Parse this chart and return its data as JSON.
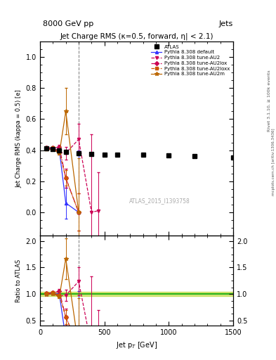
{
  "title": "Jet Charge RMS (κ=0.5, forward, η| < 2.1)",
  "header_left": "8000 GeV pp",
  "header_right": "Jets",
  "xlabel": "Jet p$_T$ [GeV]",
  "ylabel_main": "Jet Charge RMS (kappa = 0.5) [e]",
  "ylabel_ratio": "Ratio to ATLAS",
  "watermark": "ATLAS_2015_I1393758",
  "atlas_data": {
    "x": [
      50,
      100,
      150,
      200,
      300,
      400,
      500,
      600,
      800,
      1000,
      1200,
      1500
    ],
    "y": [
      0.41,
      0.405,
      0.4,
      0.39,
      0.38,
      0.375,
      0.37,
      0.37,
      0.37,
      0.365,
      0.36,
      0.355
    ],
    "yerr": [
      0.005,
      0.005,
      0.004,
      0.004,
      0.004,
      0.004,
      0.004,
      0.004,
      0.004,
      0.004,
      0.004,
      0.005
    ],
    "color": "#000000",
    "marker": "s",
    "markersize": 4,
    "label": "ATLAS"
  },
  "pythia_default": {
    "x": [
      50,
      100,
      150,
      200,
      300
    ],
    "y": [
      0.41,
      0.41,
      0.4,
      0.06,
      0.0
    ],
    "yerr": [
      0.005,
      0.006,
      0.008,
      0.1,
      0.4
    ],
    "color": "#3333ff",
    "linestyle": "-",
    "marker": "^",
    "markersize": 3,
    "label": "Pythia 8.308 default"
  },
  "pythia_au2": {
    "x": [
      50,
      100,
      150,
      200,
      300,
      400,
      450
    ],
    "y": [
      0.41,
      0.41,
      0.385,
      0.38,
      0.47,
      0.0,
      0.01
    ],
    "yerr": [
      0.005,
      0.006,
      0.008,
      0.04,
      0.1,
      0.5,
      0.25
    ],
    "color": "#cc0055",
    "linestyle": "--",
    "marker": "v",
    "markersize": 3,
    "label": "Pythia 8.308 tune-AU2"
  },
  "pythia_au2lox": {
    "x": [
      50,
      100,
      150,
      200,
      300
    ],
    "y": [
      0.415,
      0.415,
      0.42,
      0.22,
      0.0
    ],
    "yerr": [
      0.005,
      0.006,
      0.015,
      0.06,
      0.12
    ],
    "color": "#cc0055",
    "linestyle": "-.",
    "marker": "D",
    "markersize": 3,
    "label": "Pythia 8.308 tune-AU2lox"
  },
  "pythia_au2loxx": {
    "x": [
      50,
      100,
      150,
      200,
      300
    ],
    "y": [
      0.415,
      0.415,
      0.39,
      0.22,
      0.0
    ],
    "yerr": [
      0.005,
      0.006,
      0.012,
      0.05,
      0.12
    ],
    "color": "#cc5500",
    "linestyle": "--",
    "marker": "s",
    "markersize": 3,
    "label": "Pythia 8.308 tune-AU2loxx"
  },
  "pythia_au2m": {
    "x": [
      50,
      100,
      150,
      200,
      300
    ],
    "y": [
      0.405,
      0.405,
      0.38,
      0.65,
      0.0
    ],
    "yerr": [
      0.005,
      0.006,
      0.01,
      0.15,
      0.35
    ],
    "color": "#bb6600",
    "linestyle": "-",
    "marker": "*",
    "markersize": 4,
    "label": "Pythia 8.308 tune-AU2m"
  },
  "ratio_green_line": 1.0,
  "ratio_band_color": "#aacc00",
  "ratio_band_alpha": 0.5,
  "ratio_band_ylow": 0.965,
  "ratio_band_yhigh": 1.035,
  "xlim": [
    0,
    1500
  ],
  "ylim_main": [
    -0.15,
    1.1
  ],
  "ylim_ratio": [
    0.4,
    2.1
  ],
  "yticks_main": [
    0.0,
    0.2,
    0.4,
    0.6,
    0.8,
    1.0
  ],
  "yticks_ratio": [
    0.5,
    1.0,
    1.5,
    2.0
  ],
  "xticks": [
    0,
    500,
    1000,
    1500
  ],
  "vline_x": 300,
  "bg_color": "#ffffff",
  "border_color": "#000000"
}
